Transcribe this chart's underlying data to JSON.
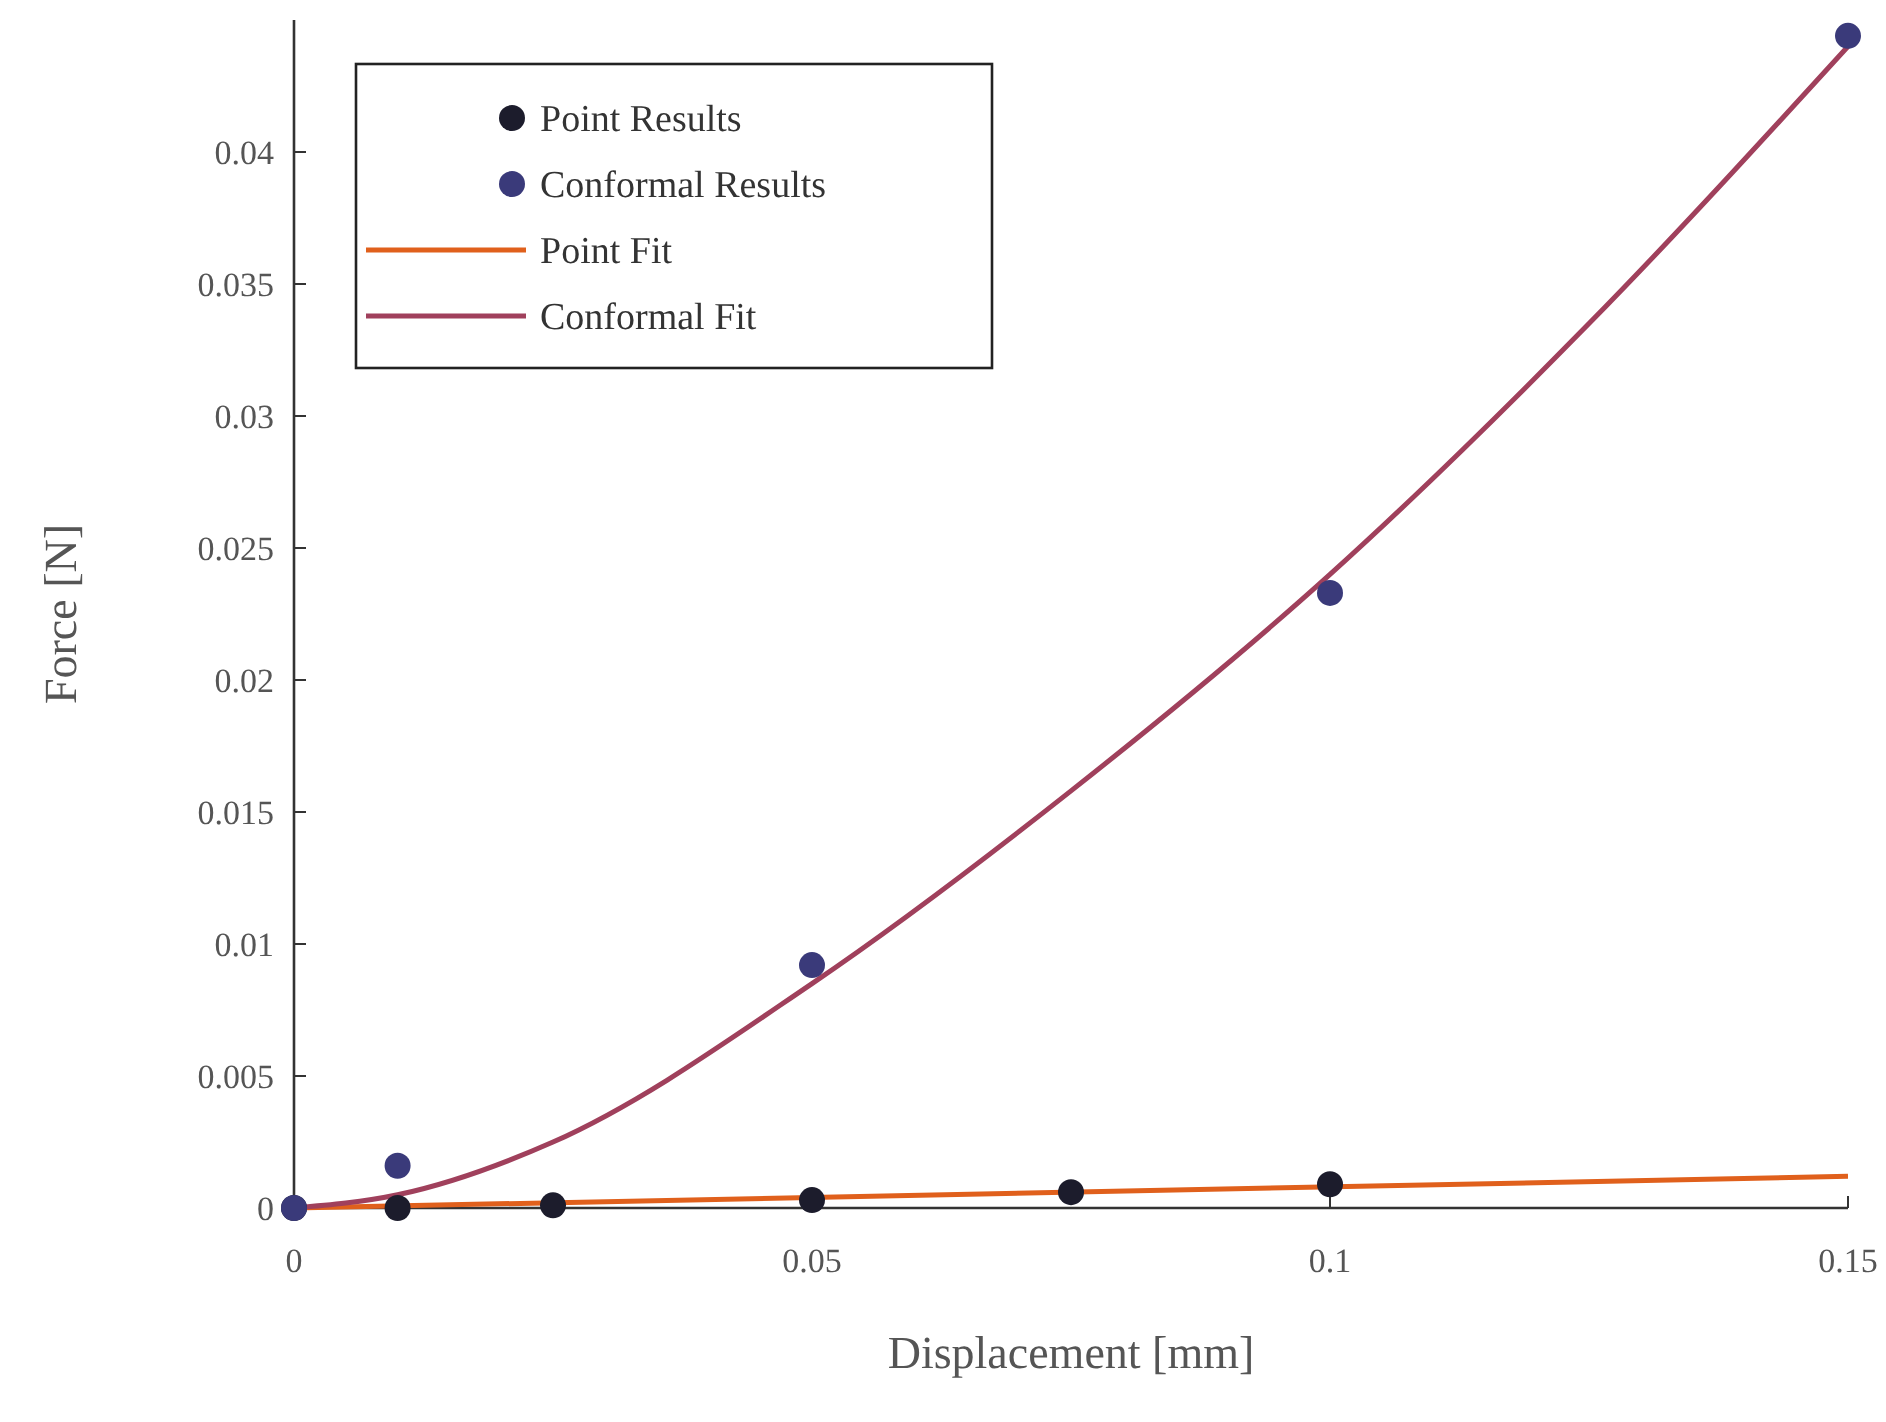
{
  "chart_data": {
    "type": "scatter",
    "xlabel": "Displacement [mm]",
    "ylabel": "Force [N]",
    "xlim": [
      0,
      0.15
    ],
    "ylim": [
      0,
      0.045
    ],
    "xticks": [
      0,
      0.05,
      0.1,
      0.15
    ],
    "yticks": [
      0,
      0.005,
      0.01,
      0.015,
      0.02,
      0.025,
      0.03,
      0.035,
      0.04
    ],
    "grid": false,
    "legend": "top left",
    "series": [
      {
        "name": "Point Results",
        "marker": "circle",
        "color": "#1c1c2c",
        "x": [
          0,
          0.01,
          0.025,
          0.05,
          0.075,
          0.1
        ],
        "values": [
          0,
          0,
          0.0001,
          0.0003,
          0.0006,
          0.0009
        ]
      },
      {
        "name": "Conformal Results",
        "marker": "circle",
        "color": "#3a3a7a",
        "x": [
          0,
          0.01,
          0.05,
          0.1,
          0.15
        ],
        "values": [
          0,
          0.0016,
          0.0092,
          0.0233,
          0.0444
        ]
      },
      {
        "name": "Point Fit",
        "type": "line",
        "color": "#e0601c",
        "x": [
          0,
          0.15
        ],
        "values": [
          0,
          0.0012
        ]
      },
      {
        "name": "Conformal Fit",
        "type": "line",
        "color": "#a0405c",
        "x": [
          0,
          0.01,
          0.025,
          0.05,
          0.075,
          0.1,
          0.125,
          0.15
        ],
        "values": [
          0,
          0.0005,
          0.0025,
          0.0085,
          0.0158,
          0.024,
          0.0335,
          0.044
        ]
      }
    ]
  }
}
